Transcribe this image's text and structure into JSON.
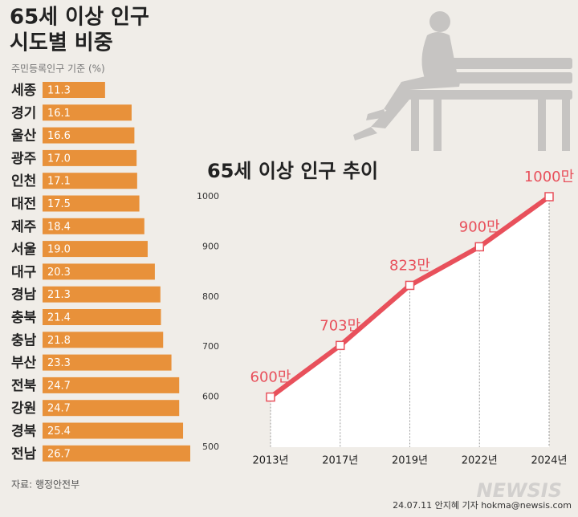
{
  "chart_data": [
    {
      "type": "bar",
      "horizontal": true,
      "title": [
        "65세 이상 인구",
        "시도별 비중"
      ],
      "subtitle": "주민등록인구 기준 (%)",
      "categories": [
        "세종",
        "경기",
        "울산",
        "광주",
        "인천",
        "대전",
        "제주",
        "서울",
        "대구",
        "경남",
        "충북",
        "충남",
        "부산",
        "전북",
        "강원",
        "경북",
        "전남"
      ],
      "values": [
        11.3,
        16.1,
        16.6,
        17.0,
        17.1,
        17.5,
        18.4,
        19.0,
        20.3,
        21.3,
        21.4,
        21.8,
        23.3,
        24.7,
        24.7,
        25.4,
        26.7
      ],
      "value_labels": [
        "11.3",
        "16.1",
        "16.6",
        "17.0",
        "17.1",
        "17.5",
        "18.4",
        "19.0",
        "20.3",
        "21.3",
        "21.4",
        "21.8",
        "23.3",
        "24.7",
        "24.7",
        "25.4",
        "26.7"
      ],
      "color": "#e8913a",
      "source": "자료: 행정안전부"
    },
    {
      "type": "line",
      "title": "65세 이상 인구 추이",
      "categories": [
        "2013년",
        "2017년",
        "2019년",
        "2022년",
        "2024년"
      ],
      "values": [
        600,
        703,
        823,
        900,
        1000
      ],
      "value_labels": [
        "600만",
        "703만",
        "823만",
        "900만",
        "1000만"
      ],
      "color": "#e8505b",
      "ylim": [
        500,
        1000
      ],
      "yticks": [
        500,
        600,
        700,
        800,
        900,
        1000
      ],
      "grid": false
    }
  ],
  "credit": "24.07.11 안지혜 기자 hokma@newsis.com",
  "watermark": "NEWSIS"
}
